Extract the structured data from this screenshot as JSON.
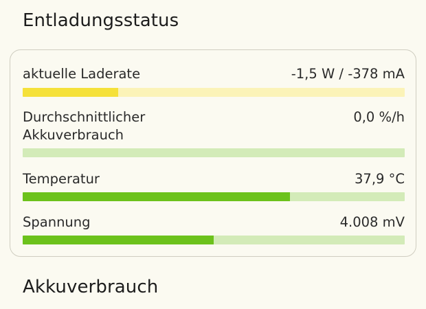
{
  "colors": {
    "background": "#fbfaf1",
    "yellow_fill": "#f5e13a",
    "yellow_track": "#fbf3b8",
    "green_fill": "#6cc21c",
    "green_track": "#d3ebb8"
  },
  "sections": {
    "discharge_title": "Entladungsstatus",
    "usage_title": "Akkuverbrauch"
  },
  "rows": [
    {
      "label": "aktuelle Laderate",
      "value": "-1,5 W / -378 mA",
      "fill_fraction": 0.25,
      "color": "yellow"
    },
    {
      "label": "Durchschnittlicher Akkuverbrauch",
      "value": "0,0 %/h",
      "fill_fraction": 0.0,
      "color": "green"
    },
    {
      "label": "Temperatur",
      "value": "37,9 °C",
      "fill_fraction": 0.7,
      "color": "green"
    },
    {
      "label": "Spannung",
      "value": "4.008 mV",
      "fill_fraction": 0.5,
      "color": "green"
    }
  ]
}
